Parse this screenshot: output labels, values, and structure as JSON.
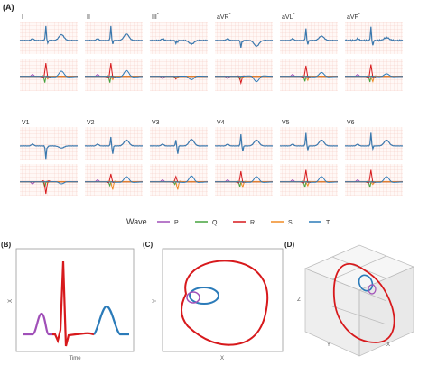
{
  "panel_a": {
    "label": "(A)",
    "leads_row1": [
      "I",
      "II",
      "III",
      "aVR",
      "aVL",
      "aVF"
    ],
    "leads_row2": [
      "V1",
      "V2",
      "V3",
      "V4",
      "V5",
      "V6"
    ],
    "starred": [
      "III",
      "aVR",
      "aVL",
      "aVF"
    ],
    "star_mark": "*",
    "legend": {
      "title": "Wave",
      "items": [
        {
          "name": "P",
          "color": "#a04fb8"
        },
        {
          "name": "Q",
          "color": "#46a33e"
        },
        {
          "name": "R",
          "color": "#d7191c"
        },
        {
          "name": "S",
          "color": "#f08a24"
        },
        {
          "name": "T",
          "color": "#2b7bb9"
        }
      ]
    }
  },
  "panel_b": {
    "label": "(B)",
    "ylabel": "X",
    "xlabel": "Time"
  },
  "panel_c": {
    "label": "(C)",
    "ylabel": "Y",
    "xlabel": "X"
  },
  "panel_d": {
    "label": "(D)",
    "zlabel": "Z",
    "ylabel": "Y",
    "xlabel": "X"
  },
  "colors": {
    "ecg": "#3b78ad",
    "grid": "#f3c7c1",
    "grid_bg": "#fff8f6"
  }
}
